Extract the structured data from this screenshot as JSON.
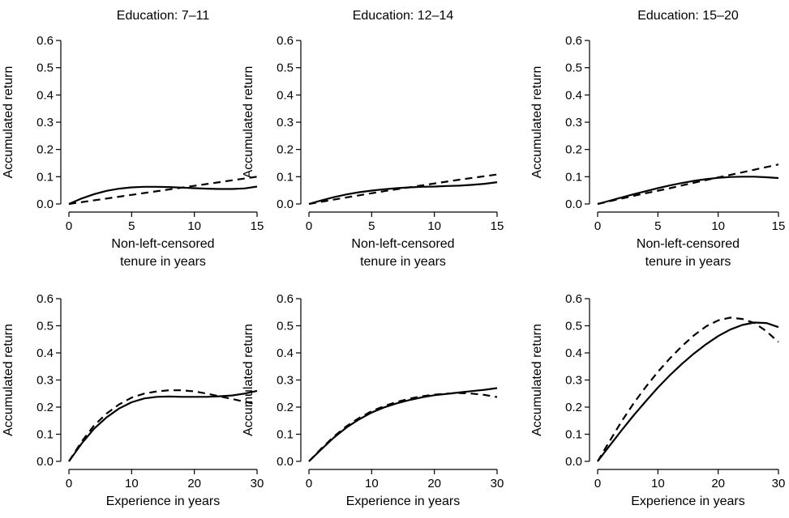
{
  "chart_data": [
    {
      "type": "line",
      "title": "Education: 7–11",
      "xlabel": [
        "Non-left-censored",
        "tenure in years"
      ],
      "ylabel": "Accumulated return",
      "xlim": [
        0,
        15
      ],
      "ylim": [
        0,
        0.6
      ],
      "xticks": [
        "0",
        "5",
        "10",
        "15"
      ],
      "yticks": [
        "0.0",
        "0.1",
        "0.2",
        "0.3",
        "0.4",
        "0.5",
        "0.6"
      ],
      "series": [
        {
          "style": "solid",
          "x": [
            0,
            1,
            2,
            3,
            4,
            5,
            6,
            7,
            8,
            9,
            10,
            11,
            12,
            13,
            14,
            15
          ],
          "y": [
            0,
            0.02,
            0.036,
            0.048,
            0.056,
            0.061,
            0.063,
            0.063,
            0.062,
            0.06,
            0.058,
            0.056,
            0.055,
            0.055,
            0.057,
            0.064
          ]
        },
        {
          "style": "dashed",
          "x": [
            0,
            3,
            6,
            9,
            12,
            15
          ],
          "y": [
            0,
            0.02,
            0.04,
            0.06,
            0.08,
            0.1
          ]
        }
      ]
    },
    {
      "type": "line",
      "title": "Education: 12–14",
      "xlabel": [
        "Non-left-censored",
        "tenure in years"
      ],
      "ylabel": "Accumulated return",
      "xlim": [
        0,
        15
      ],
      "ylim": [
        0,
        0.6
      ],
      "xticks": [
        "0",
        "5",
        "10",
        "15"
      ],
      "yticks": [
        "0.0",
        "0.1",
        "0.2",
        "0.3",
        "0.4",
        "0.5",
        "0.6"
      ],
      "series": [
        {
          "style": "solid",
          "x": [
            0,
            1,
            2,
            3,
            4,
            5,
            6,
            7,
            8,
            9,
            10,
            11,
            12,
            13,
            14,
            15
          ],
          "y": [
            0,
            0.013,
            0.025,
            0.035,
            0.043,
            0.049,
            0.054,
            0.058,
            0.061,
            0.063,
            0.064,
            0.066,
            0.067,
            0.07,
            0.074,
            0.08
          ]
        },
        {
          "style": "dashed",
          "x": [
            0,
            3,
            6,
            9,
            12,
            15
          ],
          "y": [
            0,
            0.024,
            0.047,
            0.068,
            0.089,
            0.108
          ]
        }
      ]
    },
    {
      "type": "line",
      "title": "Education: 15–20",
      "xlabel": [
        "Non-left-censored",
        "tenure in years"
      ],
      "ylabel": "Accumulated return",
      "xlim": [
        0,
        15
      ],
      "ylim": [
        0,
        0.6
      ],
      "xticks": [
        "0",
        "5",
        "10",
        "15"
      ],
      "yticks": [
        "0.0",
        "0.1",
        "0.2",
        "0.3",
        "0.4",
        "0.5",
        "0.6"
      ],
      "series": [
        {
          "style": "solid",
          "x": [
            0,
            1,
            2,
            3,
            4,
            5,
            6,
            7,
            8,
            9,
            10,
            11,
            12,
            13,
            14,
            15
          ],
          "y": [
            0,
            0.012,
            0.024,
            0.036,
            0.047,
            0.058,
            0.068,
            0.077,
            0.085,
            0.091,
            0.096,
            0.099,
            0.1,
            0.1,
            0.098,
            0.095
          ]
        },
        {
          "style": "dashed",
          "x": [
            0,
            3,
            6,
            9,
            12,
            15
          ],
          "y": [
            0,
            0.03,
            0.058,
            0.088,
            0.116,
            0.145
          ]
        }
      ]
    },
    {
      "type": "line",
      "title": "",
      "xlabel": [
        "Experience in years"
      ],
      "ylabel": "Accumulated return",
      "xlim": [
        0,
        30
      ],
      "ylim": [
        0,
        0.6
      ],
      "xticks": [
        "0",
        "10",
        "20",
        "30"
      ],
      "yticks": [
        "0.0",
        "0.1",
        "0.2",
        "0.3",
        "0.4",
        "0.5",
        "0.6"
      ],
      "series": [
        {
          "style": "solid",
          "x": [
            0,
            2,
            4,
            6,
            8,
            10,
            12,
            14,
            16,
            18,
            20,
            22,
            24,
            26,
            28,
            30
          ],
          "y": [
            0,
            0.065,
            0.12,
            0.162,
            0.195,
            0.218,
            0.232,
            0.238,
            0.239,
            0.238,
            0.238,
            0.238,
            0.24,
            0.243,
            0.25,
            0.26
          ]
        },
        {
          "style": "dashed",
          "x": [
            0,
            2,
            4,
            6,
            8,
            10,
            12,
            14,
            16,
            18,
            20,
            22,
            24,
            26,
            28,
            30
          ],
          "y": [
            0,
            0.072,
            0.132,
            0.176,
            0.21,
            0.235,
            0.25,
            0.258,
            0.262,
            0.262,
            0.258,
            0.25,
            0.24,
            0.23,
            0.22,
            0.21
          ]
        }
      ]
    },
    {
      "type": "line",
      "title": "",
      "xlabel": [
        "Experience in years"
      ],
      "ylabel": "Accumulated return",
      "xlim": [
        0,
        30
      ],
      "ylim": [
        0,
        0.6
      ],
      "xticks": [
        "0",
        "10",
        "20",
        "30"
      ],
      "yticks": [
        "0.0",
        "0.1",
        "0.2",
        "0.3",
        "0.4",
        "0.5",
        "0.6"
      ],
      "series": [
        {
          "style": "solid",
          "x": [
            0,
            2,
            4,
            6,
            8,
            10,
            12,
            14,
            16,
            18,
            20,
            22,
            24,
            26,
            28,
            30
          ],
          "y": [
            0,
            0.045,
            0.088,
            0.125,
            0.155,
            0.18,
            0.199,
            0.214,
            0.226,
            0.236,
            0.244,
            0.249,
            0.254,
            0.259,
            0.264,
            0.27
          ]
        },
        {
          "style": "dashed",
          "x": [
            0,
            2,
            4,
            6,
            8,
            10,
            12,
            14,
            16,
            18,
            20,
            22,
            24,
            26,
            28,
            30
          ],
          "y": [
            0,
            0.048,
            0.092,
            0.13,
            0.16,
            0.185,
            0.204,
            0.219,
            0.231,
            0.24,
            0.246,
            0.25,
            0.252,
            0.25,
            0.245,
            0.237
          ]
        }
      ]
    },
    {
      "type": "line",
      "title": "",
      "xlabel": [
        "Experience in years"
      ],
      "ylabel": "Accumulated return",
      "xlim": [
        0,
        30
      ],
      "ylim": [
        0,
        0.6
      ],
      "xticks": [
        "0",
        "10",
        "20",
        "30"
      ],
      "yticks": [
        "0.0",
        "0.1",
        "0.2",
        "0.3",
        "0.4",
        "0.5",
        "0.6"
      ],
      "series": [
        {
          "style": "solid",
          "x": [
            0,
            2,
            4,
            6,
            8,
            10,
            12,
            14,
            16,
            18,
            20,
            22,
            24,
            26,
            28,
            30
          ],
          "y": [
            0,
            0.058,
            0.115,
            0.17,
            0.222,
            0.272,
            0.318,
            0.36,
            0.398,
            0.432,
            0.462,
            0.486,
            0.503,
            0.512,
            0.51,
            0.495
          ]
        },
        {
          "style": "dashed",
          "x": [
            0,
            2,
            4,
            6,
            8,
            10,
            12,
            14,
            16,
            18,
            20,
            22,
            24,
            26,
            28,
            30
          ],
          "y": [
            0,
            0.075,
            0.148,
            0.215,
            0.275,
            0.33,
            0.38,
            0.425,
            0.465,
            0.498,
            0.52,
            0.53,
            0.525,
            0.51,
            0.48,
            0.44
          ]
        }
      ]
    }
  ]
}
